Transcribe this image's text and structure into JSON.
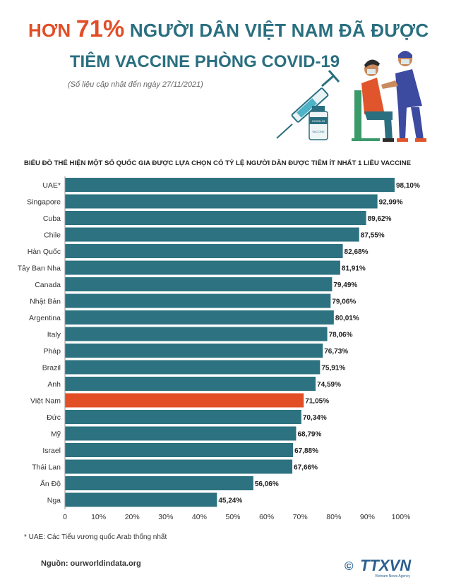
{
  "header": {
    "title_prefix": "HƠN",
    "title_percent": "71%",
    "title_suffix": "NGƯỜI DÂN VIỆT NAM ĐÃ ĐƯỢC",
    "title_line2": "TIÊM VACCINE PHÒNG COVID-19",
    "updated": "(Số liệu cập nhật đến ngày 27/11/2021)",
    "vial_label_1": "COVID-19",
    "vial_label_2": "VACCINE"
  },
  "chart_data": {
    "type": "bar",
    "orientation": "horizontal",
    "title": "BIỂU ĐỒ THỂ HIỆN MỘT SỐ QUỐC GIA ĐƯỢC LỰA CHỌN CÓ TỶ LỆ NGƯỜI DÂN ĐƯỢC TIÊM  ÍT NHẤT 1 LIỀU VACCINE",
    "categories": [
      "UAE*",
      "Singapore",
      "Cuba",
      "Chile",
      "Hàn Quốc",
      "Tây Ban Nha",
      "Canada",
      "Nhật Bản",
      "Argentina",
      "Italy",
      "Pháp",
      "Brazil",
      "Anh",
      "Việt Nam",
      "Đức",
      "Mỹ",
      "Israel",
      "Thái Lan",
      "Ấn Độ",
      "Nga"
    ],
    "values": [
      98.1,
      92.99,
      89.62,
      87.55,
      82.68,
      81.91,
      79.49,
      79.06,
      80.01,
      78.06,
      76.73,
      75.91,
      74.59,
      71.05,
      70.34,
      68.79,
      67.88,
      67.66,
      56.06,
      45.24
    ],
    "value_labels": [
      "98,10%",
      "92,99%",
      "89,62%",
      "87,55%",
      "82,68%",
      "81,91%",
      "79,49%",
      "79,06%",
      "80,01%",
      "78,06%",
      "76,73%",
      "75,91%",
      "74,59%",
      "71,05%",
      "70,34%",
      "68,79%",
      "67,88%",
      "67,66%",
      "56,06%",
      "45,24%"
    ],
    "highlight": "Việt Nam",
    "xlim": [
      0,
      100
    ],
    "xticks": [
      "0",
      "10%",
      "20%",
      "30%",
      "40%",
      "50%",
      "60%",
      "70%",
      "80%",
      "90%",
      "100%"
    ],
    "grid": false,
    "colors": {
      "bar": "#2c7280",
      "highlight": "#e24e26"
    }
  },
  "footer": {
    "footnote": "* UAE: Các Tiểu vương quốc Arab thống nhất",
    "source": "Nguồn: ourworldindata.org",
    "logo_text": "TTXVN",
    "logo_sub": "Vietnam News Agency",
    "copyright": "©"
  }
}
